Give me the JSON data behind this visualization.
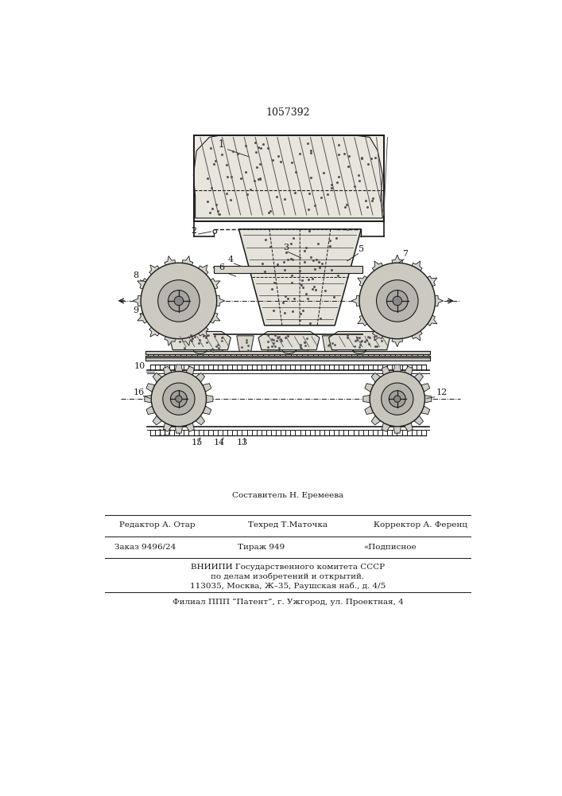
{
  "patent_number": "1057392",
  "bg_color": "#ffffff",
  "line_color": "#1a1a1a",
  "footer_lines_1": "Составитель Н. Еремеева",
  "footer_editor": "Редактор А. Отар",
  "footer_techred": "Техред Т.Маточка",
  "footer_corrector": "Корректор А. Ференц",
  "footer_order": "Заказ 9496/24",
  "footer_tirage": "Тираж 949",
  "footer_podpis": "«Подписное",
  "footer_vnipi1": "ВНИИПИ Государственного комитета СССР",
  "footer_vnipi2": "по делам изобретений и открытий.",
  "footer_vnipi3": "113035, Москва, Ж–35, Раушская наб., д. 4/5",
  "footer_filial": "Филиал ППП “Патент”, г. Ужгород, ул. Проектная, 4"
}
